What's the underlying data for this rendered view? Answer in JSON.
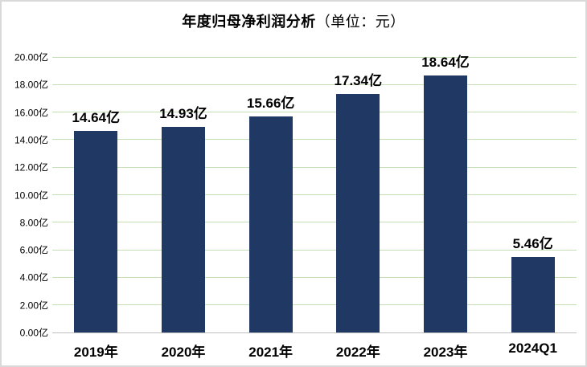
{
  "title": {
    "main": "年度归母净利润分析",
    "unit": "（单位：元）"
  },
  "chart_data": {
    "type": "bar",
    "title": "年度归母净利润分析（单位：元）",
    "categories": [
      "2019年",
      "2020年",
      "2021年",
      "2022年",
      "2023年",
      "2024Q1"
    ],
    "values": [
      14.64,
      14.93,
      15.66,
      17.34,
      18.64,
      5.46
    ],
    "value_labels": [
      "14.64亿",
      "14.93亿",
      "15.66亿",
      "17.34亿",
      "18.64亿",
      "5.46亿"
    ],
    "ylabel_ticks": [
      "0.00亿",
      "2.00亿",
      "4.00亿",
      "6.00亿",
      "8.00亿",
      "10.00亿",
      "12.00亿",
      "14.00亿",
      "16.00亿",
      "18.00亿",
      "20.00亿"
    ],
    "xlabel": "",
    "ylabel": "",
    "ylim": [
      0,
      20
    ],
    "grid": true,
    "legend": "none",
    "colors": {
      "bar": "#1f3864",
      "gridline": "#c5e0b4",
      "axis_line": "#bfbfbf",
      "text": "#000000",
      "border": "#d9d9d9",
      "background": "#ffffff"
    }
  }
}
